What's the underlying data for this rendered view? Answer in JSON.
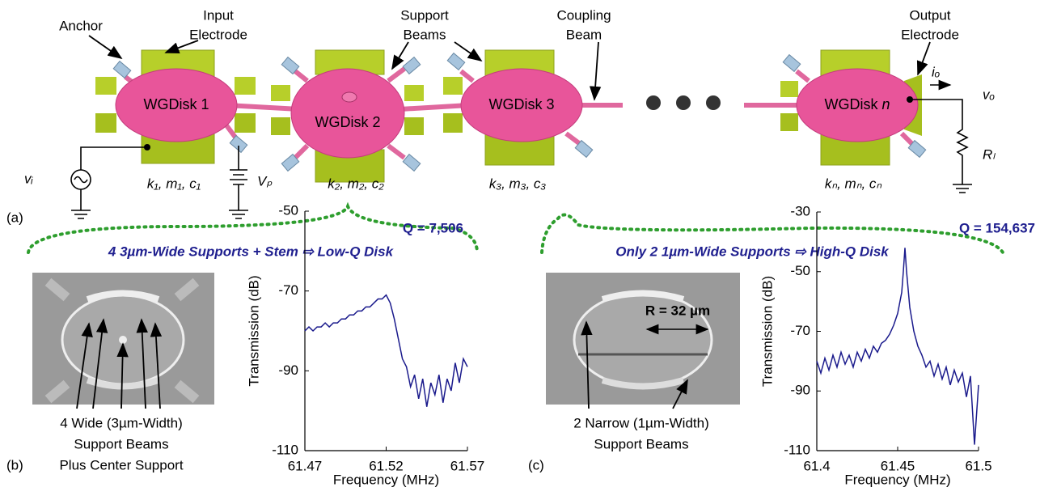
{
  "diagram": {
    "panel_label": "(a)",
    "anchor": "Anchor",
    "input_electrode": [
      "Input",
      "Electrode"
    ],
    "support_beams": [
      "Support",
      "Beams"
    ],
    "coupling_beam": [
      "Coupling",
      "Beam"
    ],
    "output_electrode": [
      "Output",
      "Electrode"
    ],
    "disks": [
      {
        "label": "WGDisk",
        "index": "1",
        "params": "k₁, m₁, c₁"
      },
      {
        "label": "WGDisk",
        "index": "2",
        "params": "k₂, m₂, c₂"
      },
      {
        "label": "WGDisk",
        "index": "3",
        "params": "k₃, m₃, c₃"
      },
      {
        "label": "WGDisk",
        "index": "n",
        "params": "kₙ, mₙ, cₙ"
      }
    ],
    "circuit": {
      "vi": "vᵢ",
      "vp": "Vₚ",
      "io": "iₒ",
      "vo": "vₒ",
      "rl": "Rₗ"
    }
  },
  "panels": [
    {
      "label": "(b)",
      "caption": [
        "4 Wide (3µm-Width)",
        "Support Beams",
        "Plus Center Support"
      ]
    },
    {
      "label": "(c)",
      "caption": [
        "2 Narrow (1µm-Width)",
        "Support Beams"
      ],
      "image_note": "R = 32 µm"
    }
  ],
  "chart_data": [
    {
      "type": "line",
      "title": "4 3µm-Wide Supports + Stem ⇨ Low-Q Disk",
      "annotation": "Q = 7,506",
      "x_label": "Frequency (MHz)",
      "y_label": "Transmission (dB)",
      "color": "#1a1a8c",
      "xlim": [
        61.47,
        61.57
      ],
      "xticks": [
        61.47,
        61.52,
        61.57
      ],
      "ylim": [
        -110,
        -50
      ],
      "yticks": [
        -50,
        -70,
        -90,
        -110
      ],
      "x": [
        61.47,
        61.4725,
        61.475,
        61.4775,
        61.48,
        61.4825,
        61.485,
        61.4875,
        61.49,
        61.4925,
        61.495,
        61.4975,
        61.5,
        61.5025,
        61.505,
        61.5075,
        61.51,
        61.5125,
        61.515,
        61.5175,
        61.52,
        61.5225,
        61.525,
        61.5275,
        61.53,
        61.5325,
        61.535,
        61.5375,
        61.54,
        61.5425,
        61.545,
        61.5475,
        61.55,
        61.5525,
        61.555,
        61.5575,
        61.56,
        61.5625,
        61.565,
        61.5675,
        61.57
      ],
      "values": [
        -80,
        -79,
        -80,
        -79,
        -79,
        -78,
        -79,
        -78,
        -78,
        -77,
        -77,
        -76,
        -76,
        -75,
        -75,
        -74,
        -74,
        -73,
        -72,
        -72,
        -71,
        -73,
        -77,
        -82,
        -87,
        -89,
        -94,
        -91,
        -97,
        -92,
        -99,
        -93,
        -96,
        -91,
        -98,
        -92,
        -95,
        -88,
        -93,
        -87,
        -89
      ]
    },
    {
      "type": "line",
      "title": "Only 2 1µm-Wide Supports ⇨ High-Q Disk",
      "annotation": "Q = 154,637",
      "x_label": "Frequency (MHz)",
      "y_label": "Transmission (dB)",
      "color": "#1a1a8c",
      "xlim": [
        61.4,
        61.5
      ],
      "xticks": [
        61.4,
        61.45,
        61.5
      ],
      "ylim": [
        -110,
        -30
      ],
      "yticks": [
        -30,
        -50,
        -70,
        -90,
        -110
      ],
      "x": [
        61.4,
        61.4025,
        61.405,
        61.4075,
        61.41,
        61.4125,
        61.415,
        61.4175,
        61.42,
        61.4225,
        61.425,
        61.4275,
        61.43,
        61.4325,
        61.435,
        61.4375,
        61.44,
        61.4425,
        61.445,
        61.4475,
        61.45,
        61.4525,
        61.4535,
        61.4545,
        61.4555,
        61.4575,
        61.46,
        61.4625,
        61.465,
        61.4675,
        61.47,
        61.4725,
        61.475,
        61.4775,
        61.48,
        61.4825,
        61.485,
        61.4875,
        61.49,
        61.4925,
        61.495,
        61.4975,
        61.5
      ],
      "values": [
        -80,
        -84,
        -79,
        -83,
        -78,
        -82,
        -77,
        -81,
        -78,
        -82,
        -77,
        -80,
        -76,
        -79,
        -75,
        -77,
        -74,
        -73,
        -71,
        -68,
        -64,
        -57,
        -50,
        -42,
        -50,
        -62,
        -70,
        -75,
        -78,
        -82,
        -80,
        -85,
        -81,
        -86,
        -82,
        -88,
        -83,
        -87,
        -84,
        -92,
        -85,
        -108,
        -88
      ]
    }
  ]
}
